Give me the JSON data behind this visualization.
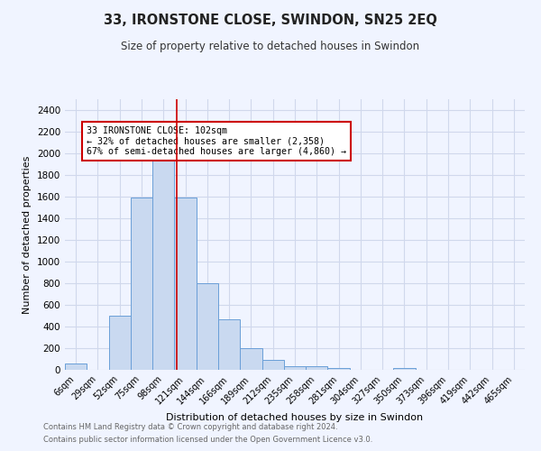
{
  "title": "33, IRONSTONE CLOSE, SWINDON, SN25 2EQ",
  "subtitle": "Size of property relative to detached houses in Swindon",
  "xlabel": "Distribution of detached houses by size in Swindon",
  "ylabel": "Number of detached properties",
  "bar_color": "#c9d9f0",
  "bar_edge_color": "#6a9fd8",
  "grid_color": "#d0d8ec",
  "categories": [
    "6sqm",
    "29sqm",
    "52sqm",
    "75sqm",
    "98sqm",
    "121sqm",
    "144sqm",
    "166sqm",
    "189sqm",
    "212sqm",
    "235sqm",
    "258sqm",
    "281sqm",
    "304sqm",
    "327sqm",
    "350sqm",
    "373sqm",
    "396sqm",
    "419sqm",
    "442sqm",
    "465sqm"
  ],
  "values": [
    55,
    0,
    500,
    1590,
    1940,
    1590,
    800,
    470,
    200,
    90,
    35,
    30,
    20,
    0,
    0,
    20,
    0,
    0,
    0,
    0,
    0
  ],
  "vline_x": 4.62,
  "vline_color": "#cc0000",
  "annotation_text": "33 IRONSTONE CLOSE: 102sqm\n← 32% of detached houses are smaller (2,358)\n67% of semi-detached houses are larger (4,860) →",
  "annotation_box_color": "white",
  "annotation_box_edge_color": "#cc0000",
  "ylim": [
    0,
    2500
  ],
  "yticks": [
    0,
    200,
    400,
    600,
    800,
    1000,
    1200,
    1400,
    1600,
    1800,
    2000,
    2200,
    2400
  ],
  "footnote1": "Contains HM Land Registry data © Crown copyright and database right 2024.",
  "footnote2": "Contains public sector information licensed under the Open Government Licence v3.0.",
  "background_color": "#f0f4ff"
}
